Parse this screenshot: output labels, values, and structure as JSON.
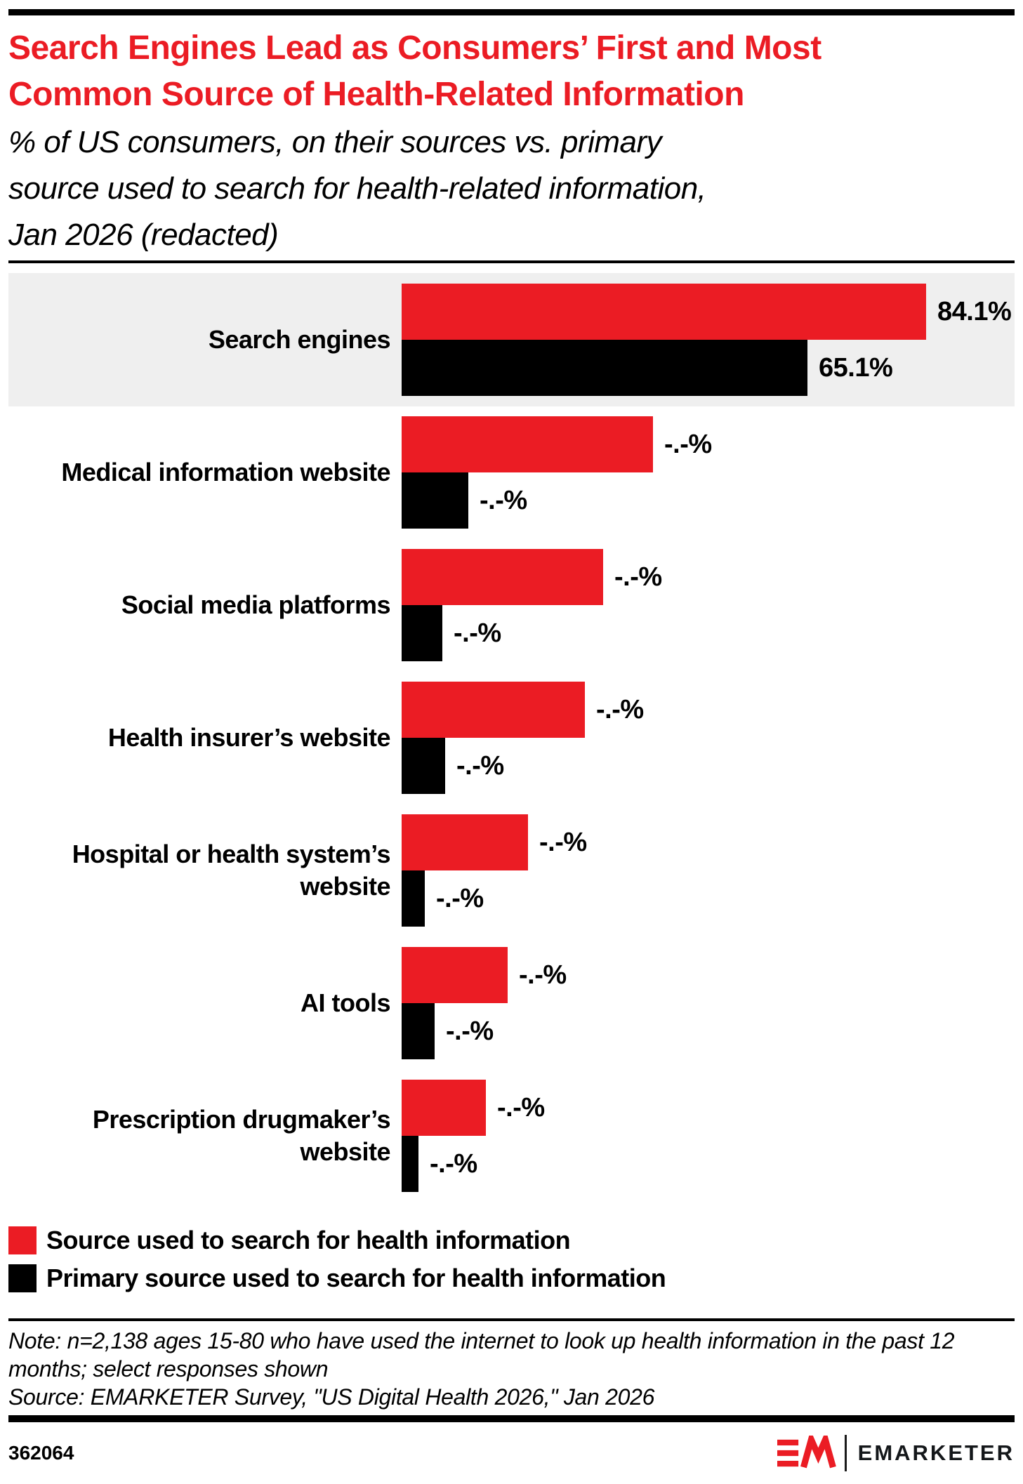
{
  "header": {
    "title": "Search Engines Lead as Consumers’ First and Most\nCommon Source of Health-Related Information",
    "subtitle": "% of US consumers, on their sources vs. primary\nsource used to search for health-related information,\nJan 2026 (redacted)"
  },
  "chart_data": {
    "type": "bar",
    "orientation": "horizontal",
    "title": "Search Engines Lead as Consumers’ First and Most Common Source of Health-Related Information",
    "subtitle": "% of US consumers, on their sources vs. primary source used to search for health-related information, Jan 2026 (redacted)",
    "categories": [
      "Search engines",
      "Medical information website",
      "Social media platforms",
      "Health insurer’s website",
      "Hospital or health system’s\nwebsite",
      "AI tools",
      "Prescription drugmaker’s\nwebsite"
    ],
    "series": [
      {
        "name": "Source used to search for health information",
        "color": "#EB1C24",
        "values": [
          84.1,
          null,
          null,
          null,
          null,
          null,
          null
        ],
        "labels": [
          "84.1%",
          "-.-%",
          "-.-%",
          "-.-%",
          "-.-%",
          "-.-%",
          "-.-%"
        ],
        "bar_length_pct": [
          84.1,
          40.3,
          32.3,
          29.4,
          20.3,
          17.0,
          13.5
        ]
      },
      {
        "name": "Primary source used to search for health information",
        "color": "#000000",
        "values": [
          65.1,
          null,
          null,
          null,
          null,
          null,
          null
        ],
        "labels": [
          "65.1%",
          "-.-%",
          "-.-%",
          "-.-%",
          "-.-%",
          "-.-%",
          "-.-%"
        ],
        "bar_length_pct": [
          65.1,
          10.7,
          6.5,
          7.0,
          3.7,
          5.3,
          2.7
        ]
      }
    ],
    "xlim": [
      0,
      100
    ],
    "grid": false,
    "legend_position": "bottom-left",
    "highlight_category": "Search engines",
    "redacted_value_label": "-.-%"
  },
  "footnote": {
    "note": "Note: n=2,138 ages 15-80 who have used the internet to look up health information in the past 12 months; select responses shown",
    "source": "Source: EMARKETER Survey, \"US Digital Health 2026,\" Jan 2026"
  },
  "footer": {
    "chart_id": "362064",
    "brand": "EMARKETER"
  },
  "colors": {
    "accent_red": "#EB1C24",
    "bar_black": "#000000",
    "highlight_band": "#efefef"
  }
}
